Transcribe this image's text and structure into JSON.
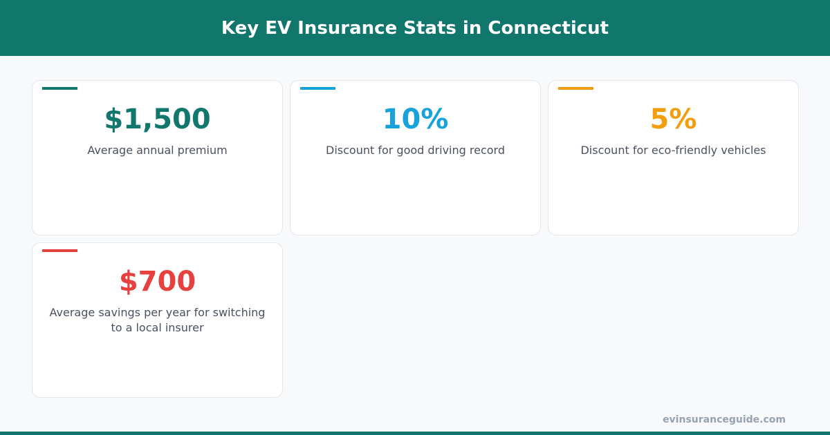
{
  "header": {
    "title": "Key EV Insurance Stats in Connecticut"
  },
  "stats": [
    {
      "value": "$1,500",
      "label": "Average annual premium",
      "color": "#11766c"
    },
    {
      "value": "10%",
      "label": "Discount for good driving record",
      "color": "#17a2dc"
    },
    {
      "value": "5%",
      "label": "Discount for eco-friendly vehicles",
      "color": "#f29e0c"
    },
    {
      "value": "$700",
      "label": "Average savings per year for switching to a local insurer",
      "color": "#e6403f"
    }
  ],
  "footer": {
    "site": "evinsuranceguide.com"
  }
}
